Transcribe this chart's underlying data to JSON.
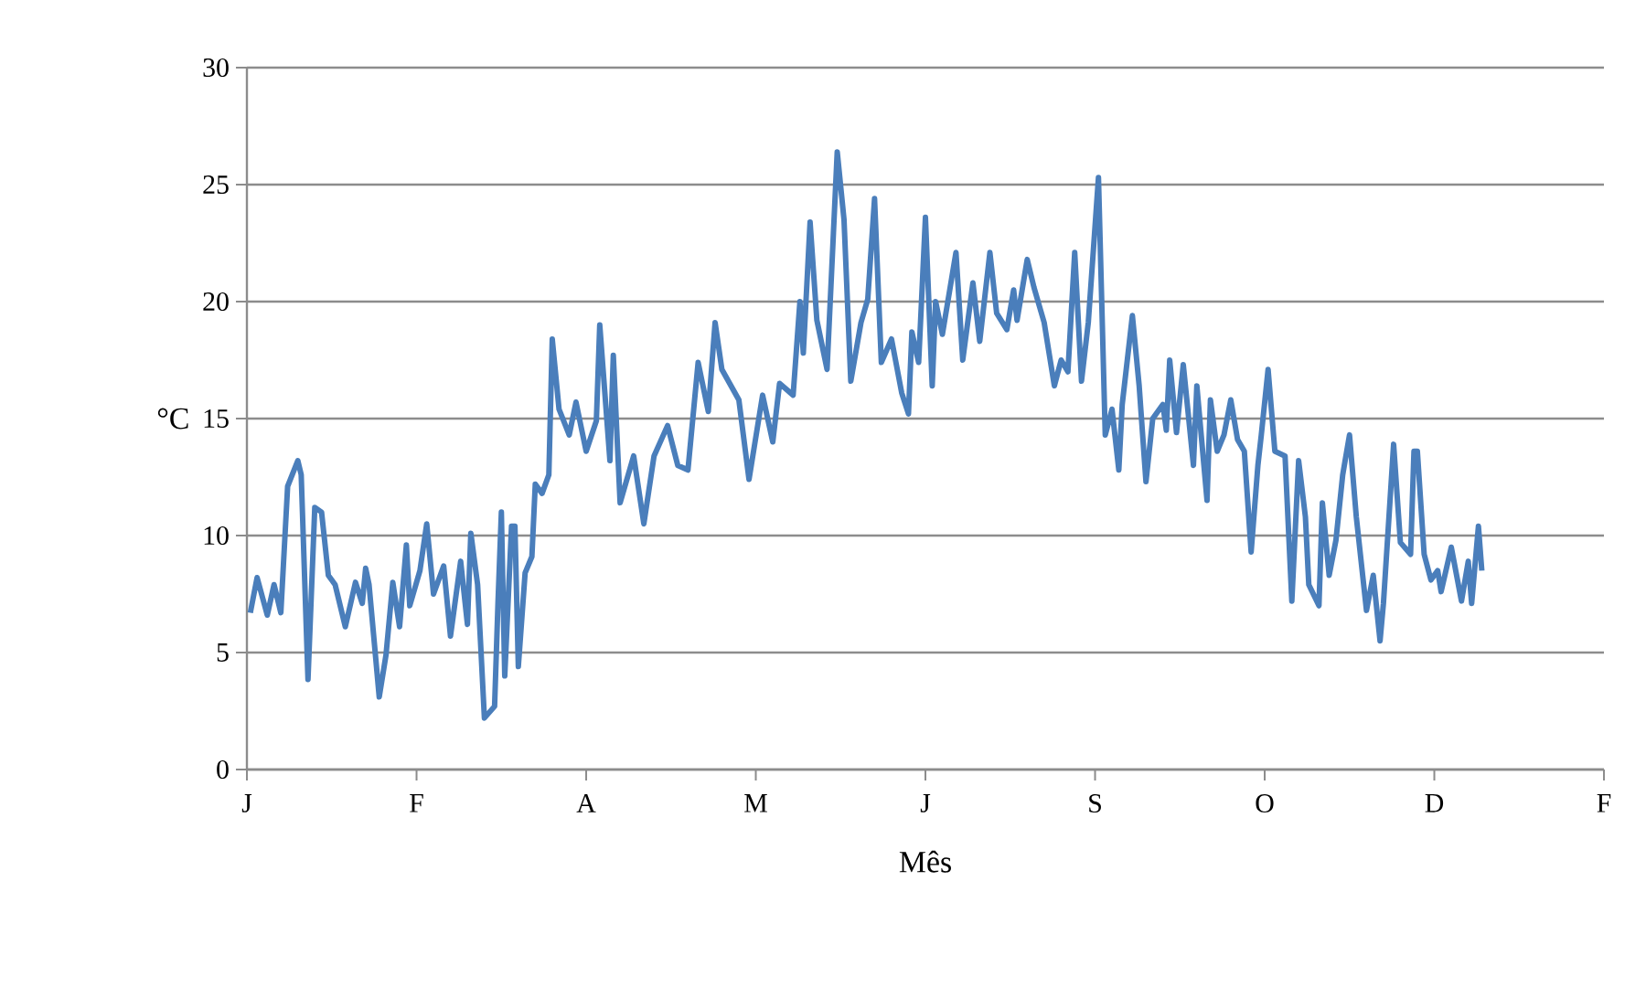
{
  "chart_data": {
    "type": "line",
    "xlabel": "Mês",
    "ylabel": "°C",
    "categories": [
      "J",
      null,
      null,
      null,
      null,
      null,
      null,
      null,
      null,
      null,
      null,
      null,
      null,
      null,
      null,
      null,
      null,
      null,
      null,
      null,
      null,
      null,
      null,
      null,
      null,
      null,
      null,
      null,
      null,
      null,
      null,
      null,
      null,
      null,
      null,
      null,
      null,
      null,
      null,
      null,
      null,
      null,
      null,
      null,
      null,
      null,
      null,
      null,
      null,
      null,
      "F",
      null,
      null,
      null,
      null,
      null,
      null,
      null,
      null,
      null,
      null,
      null,
      null,
      null,
      null,
      null,
      null,
      null,
      null,
      null,
      null,
      null,
      null,
      null,
      null,
      null,
      null,
      null,
      null,
      null,
      null,
      null,
      null,
      null,
      null,
      null,
      null,
      null,
      null,
      null,
      null,
      null,
      null,
      null,
      null,
      null,
      null,
      null,
      null,
      null,
      "A",
      null,
      null,
      null,
      null,
      null,
      null,
      null,
      null,
      null,
      null,
      null,
      null,
      null,
      null,
      null,
      null,
      null,
      null,
      null,
      null,
      null,
      null,
      null,
      null,
      null,
      null,
      null,
      null,
      null,
      null,
      null,
      null,
      null,
      null,
      null,
      null,
      null,
      null,
      null,
      null,
      null,
      null,
      null,
      null,
      null,
      null,
      null,
      null,
      null,
      "M",
      null,
      null,
      null,
      null,
      null,
      null,
      null,
      null,
      null,
      null,
      null,
      null,
      null,
      null,
      null,
      null,
      null,
      null,
      null,
      null,
      null,
      null,
      null,
      null,
      null,
      null,
      null,
      null,
      null,
      null,
      null,
      null,
      null,
      null,
      null,
      null,
      null,
      null,
      null,
      null,
      null,
      null,
      null,
      null,
      null,
      null,
      null,
      null,
      null,
      "J",
      null,
      null,
      null,
      null,
      null,
      null,
      null,
      null,
      null,
      null,
      null,
      null,
      null,
      null,
      null,
      null,
      null,
      null,
      null,
      null,
      null,
      null,
      null,
      null,
      null,
      null,
      null,
      null,
      null,
      null,
      null,
      null,
      null,
      null,
      null,
      null,
      null,
      null,
      null,
      null,
      null,
      null,
      null,
      null,
      null,
      null,
      null,
      null,
      null,
      "S",
      null,
      null,
      null,
      null,
      null,
      null,
      null,
      null,
      null,
      null,
      null,
      null,
      null,
      null,
      null,
      null,
      null,
      null,
      null,
      null,
      null,
      null,
      null,
      null,
      null,
      null,
      null,
      null,
      null,
      null,
      null,
      null,
      null,
      null,
      null,
      null,
      null,
      null,
      null,
      null,
      null,
      null,
      null,
      null,
      null,
      null,
      null,
      null,
      null,
      "O",
      null,
      null,
      null,
      null,
      null,
      null,
      null,
      null,
      null,
      null,
      null,
      null,
      null,
      null,
      null,
      null,
      null,
      null,
      null,
      null,
      null,
      null,
      null,
      null,
      null,
      null,
      null,
      null,
      null,
      null,
      null,
      null,
      null,
      null,
      null,
      null,
      null,
      null,
      null,
      null,
      null,
      null,
      null,
      null,
      null,
      null,
      null,
      null,
      null,
      "D",
      null,
      null,
      null,
      null,
      null,
      null,
      null,
      null,
      null,
      null,
      null,
      null,
      null,
      null,
      null,
      null,
      null,
      null,
      null,
      null,
      null,
      null,
      null,
      null,
      null,
      null,
      null,
      null,
      null,
      null,
      null,
      null,
      null,
      null,
      null,
      null,
      null,
      null,
      null,
      null,
      null,
      null,
      null,
      null,
      null,
      null,
      null,
      null,
      null,
      "F"
    ],
    "ylim": [
      0,
      30
    ],
    "yticks": [
      0,
      5,
      10,
      15,
      20,
      25,
      30
    ],
    "grid": "y",
    "series": [
      {
        "color": "#4a7ebb",
        "line_style": "solid",
        "values": [
          null,
          6.7,
          null,
          8.2,
          null,
          null,
          6.6,
          null,
          7.9,
          null,
          6.7,
          null,
          12.1,
          null,
          null,
          13.2,
          12.6,
          null,
          3.85,
          null,
          11.2,
          null,
          11.0,
          null,
          8.3,
          null,
          7.9,
          null,
          null,
          6.1,
          null,
          null,
          8.0,
          null,
          7.1,
          8.6,
          7.9,
          null,
          null,
          3.1,
          null,
          4.9,
          null,
          8.0,
          null,
          6.1,
          null,
          9.6,
          7.0,
          null,
          null,
          8.5,
          null,
          10.5,
          null,
          7.5,
          null,
          null,
          8.7,
          null,
          5.7,
          null,
          null,
          8.9,
          null,
          6.2,
          10.1,
          null,
          7.9,
          null,
          2.2,
          null,
          null,
          2.7,
          7.1,
          11.0,
          4.0,
          null,
          10.4,
          10.4,
          4.4,
          null,
          8.4,
          null,
          9.1,
          12.2,
          null,
          11.8,
          null,
          12.6,
          18.4,
          null,
          15.4,
          null,
          null,
          14.3,
          null,
          15.7,
          null,
          null,
          13.6,
          null,
          null,
          14.9,
          19.0,
          null,
          null,
          13.2,
          17.7,
          null,
          11.4,
          null,
          null,
          null,
          13.4,
          null,
          null,
          10.5,
          null,
          null,
          13.4,
          null,
          null,
          null,
          14.7,
          null,
          null,
          13.0,
          null,
          null,
          12.8,
          null,
          null,
          17.4,
          null,
          null,
          15.3,
          null,
          19.1,
          null,
          17.1,
          null,
          null,
          null,
          null,
          15.8,
          null,
          null,
          12.4,
          null,
          null,
          null,
          16.0,
          null,
          null,
          14.0,
          null,
          16.5,
          null,
          null,
          null,
          16.0,
          null,
          20.0,
          17.8,
          null,
          23.4,
          null,
          19.2,
          null,
          null,
          17.1,
          null,
          null,
          26.4,
          null,
          23.5,
          null,
          16.6,
          null,
          null,
          19.1,
          null,
          20.1,
          null,
          24.4,
          null,
          17.4,
          null,
          null,
          18.4,
          null,
          null,
          16.1,
          null,
          15.2,
          18.7,
          null,
          17.4,
          null,
          23.6,
          null,
          16.4,
          20.0,
          null,
          18.6,
          null,
          null,
          null,
          22.1,
          null,
          17.5,
          null,
          null,
          20.8,
          null,
          18.3,
          null,
          null,
          22.1,
          null,
          19.5,
          null,
          null,
          18.8,
          null,
          20.5,
          19.2,
          null,
          null,
          21.8,
          null,
          20.6,
          null,
          null,
          19.1,
          null,
          null,
          16.4,
          null,
          17.5,
          null,
          17.0,
          null,
          22.1,
          null,
          16.6,
          null,
          19.1,
          null,
          null,
          25.3,
          null,
          14.3,
          null,
          15.4,
          null,
          12.8,
          15.6,
          null,
          null,
          19.4,
          null,
          16.4,
          null,
          12.3,
          null,
          15.0,
          null,
          null,
          15.6,
          14.5,
          17.5,
          null,
          14.4,
          null,
          17.3,
          null,
          null,
          13.0,
          16.4,
          null,
          null,
          11.5,
          15.8,
          null,
          13.6,
          null,
          14.3,
          null,
          15.8,
          null,
          14.1,
          null,
          13.6,
          null,
          9.3,
          null,
          13.0,
          14.3,
          null,
          17.1,
          null,
          13.6,
          null,
          null,
          13.4,
          null,
          7.2,
          null,
          13.2,
          null,
          10.8,
          7.9,
          null,
          null,
          7.0,
          11.4,
          null,
          8.3,
          null,
          9.8,
          null,
          12.6,
          null,
          14.3,
          null,
          10.8,
          null,
          null,
          6.8,
          null,
          8.3,
          null,
          5.5,
          7.1,
          null,
          null,
          13.9,
          null,
          9.7,
          null,
          null,
          9.2,
          13.6,
          13.6,
          null,
          9.2,
          null,
          8.1,
          null,
          8.5,
          7.6,
          null,
          null,
          9.5,
          null,
          null,
          7.2,
          null,
          8.9,
          7.1,
          null,
          10.4,
          8.5,
          null,
          null,
          null,
          null,
          null,
          null,
          null,
          null,
          null,
          null,
          null,
          null,
          null,
          null,
          null,
          null,
          null,
          null,
          null,
          null,
          null,
          null,
          null,
          null,
          null,
          null,
          null,
          null,
          null,
          null,
          null,
          null,
          null,
          null,
          null,
          null
        ]
      }
    ]
  }
}
